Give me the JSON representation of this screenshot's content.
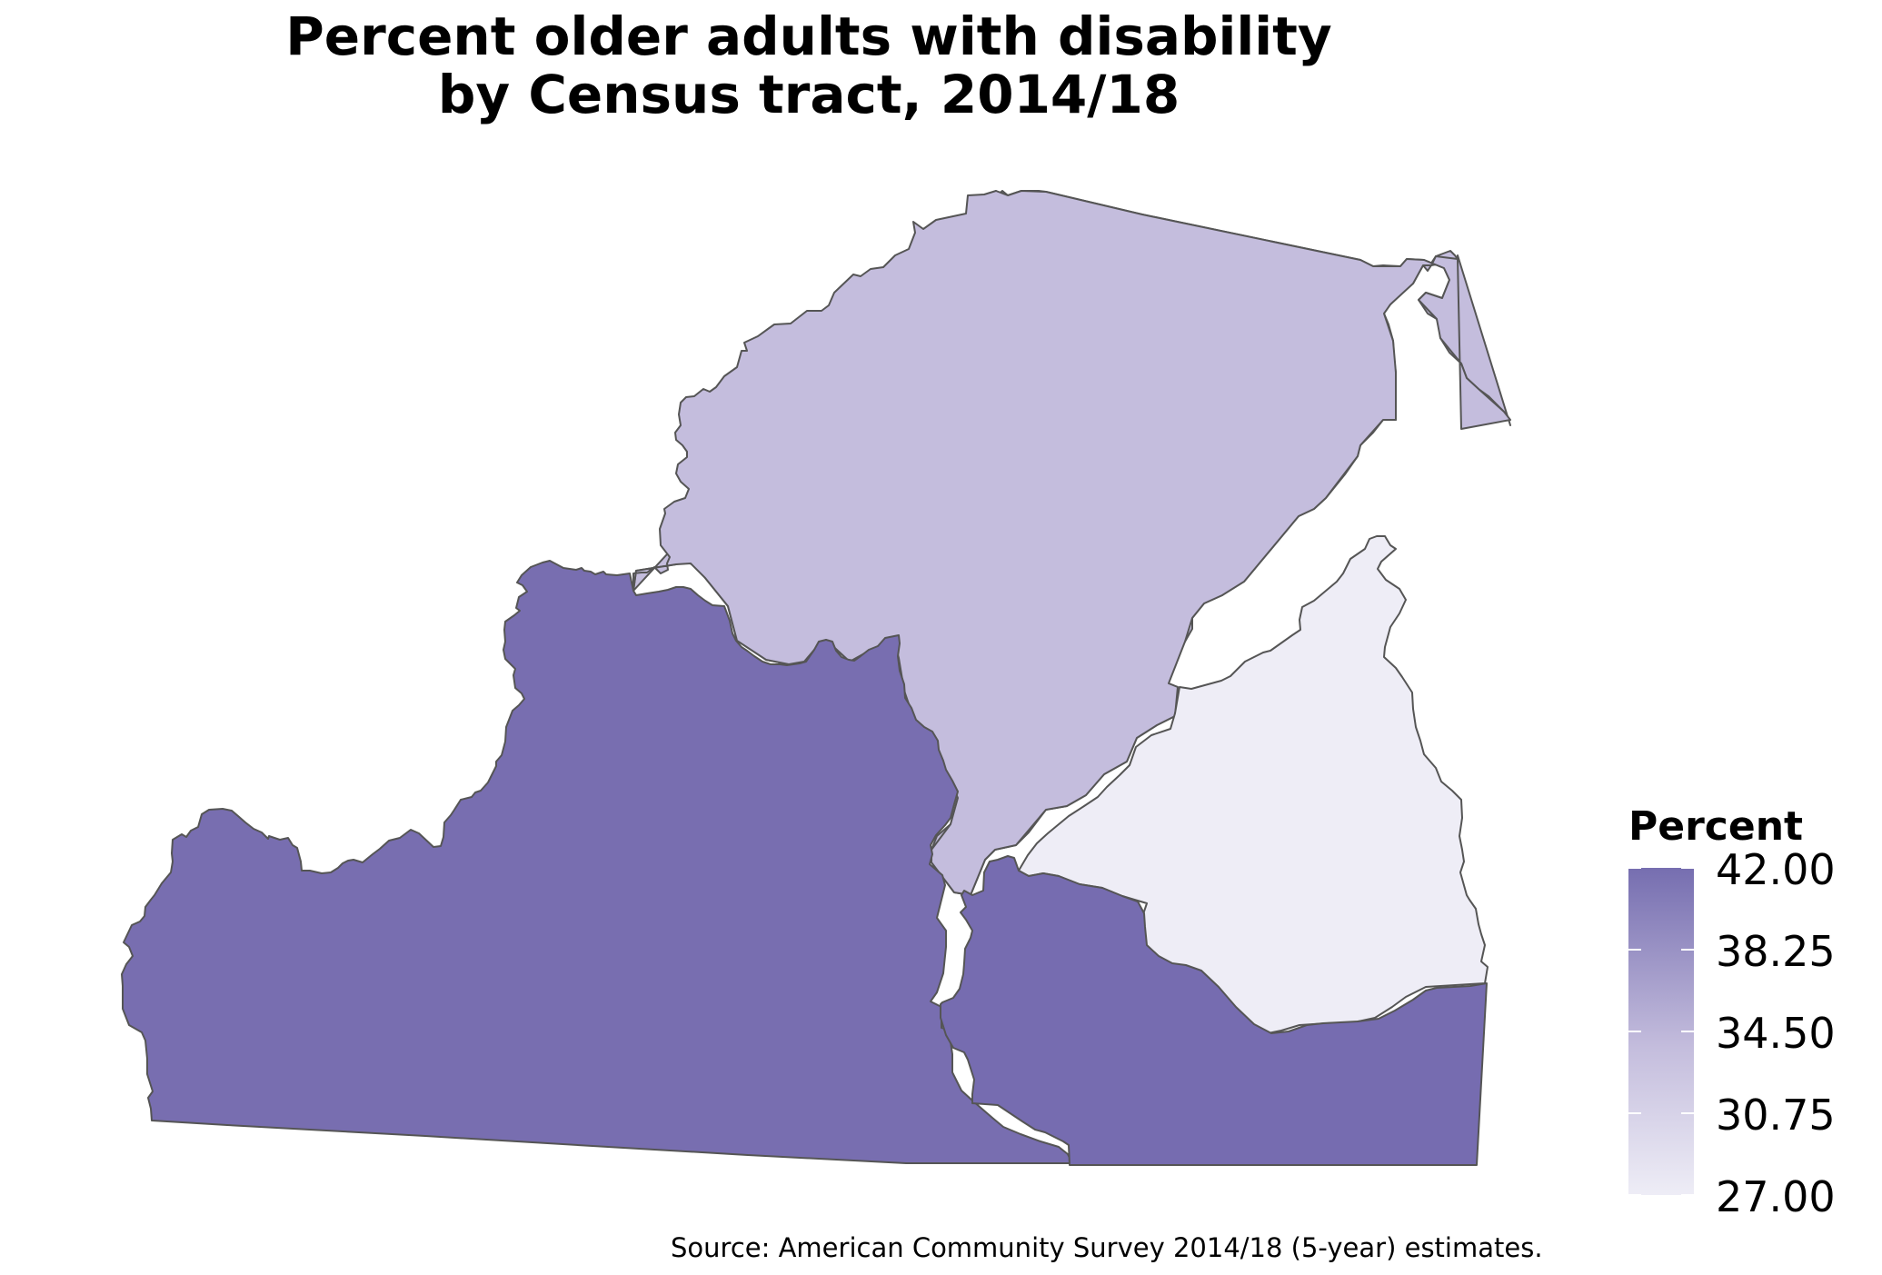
{
  "title_line1": "Percent older adults with disability",
  "title_line2": "by Census tract, 2014/18",
  "legend": {
    "title": "Percent",
    "labels": [
      "42.00",
      "38.25",
      "34.50",
      "30.75",
      "27.00"
    ],
    "min": 27.0,
    "max": 42.0,
    "color_high": "#766eb0",
    "color_mid": "#c4bddd",
    "color_low": "#eeedf6"
  },
  "regions": [
    {
      "id": "tract-north",
      "fill": "#c4bddd"
    },
    {
      "id": "tract-southwest",
      "fill": "#786eb0"
    },
    {
      "id": "tract-southcentral",
      "fill": "#766cb0"
    },
    {
      "id": "tract-east",
      "fill": "#eeedf6"
    }
  ],
  "caption": "Source: American Community Survey 2014/18 (5-year) estimates."
}
